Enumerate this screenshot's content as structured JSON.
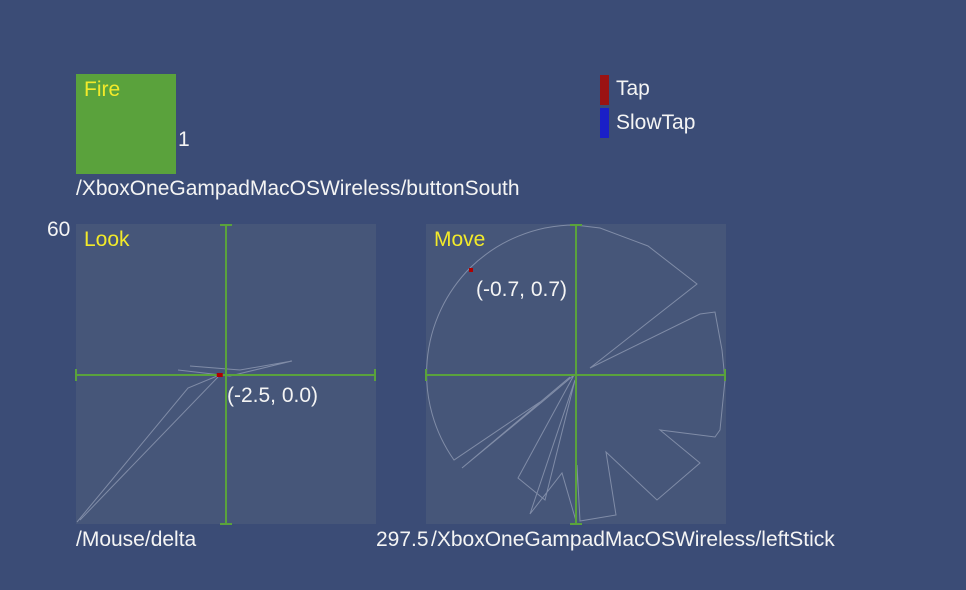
{
  "fire": {
    "label": "Fire",
    "value": "1",
    "path": "/XboxOneGampadMacOSWireless/buttonSouth",
    "color": "#5aa23c"
  },
  "legend": [
    {
      "label": "Tap",
      "color": "#9b1212"
    },
    {
      "label": "SlowTap",
      "color": "#1a1fc8"
    }
  ],
  "look": {
    "label": "Look",
    "max_label": "60",
    "value_label": "(-2.5, 0.0)",
    "path": "/Mouse/delta",
    "value": [
      -2.5,
      0.0
    ]
  },
  "move": {
    "label": "Move",
    "max_label": "297.5",
    "value_label": "(-0.7, 0.7)",
    "path": "/XboxOneGampadMacOSWireless/leftStick",
    "value": [
      -0.7,
      0.7
    ]
  },
  "colors": {
    "background": "#3b4c76",
    "panel": "#465679",
    "axis": "#5aa23c",
    "label": "#f2ea2a",
    "marker": "#b00000"
  }
}
